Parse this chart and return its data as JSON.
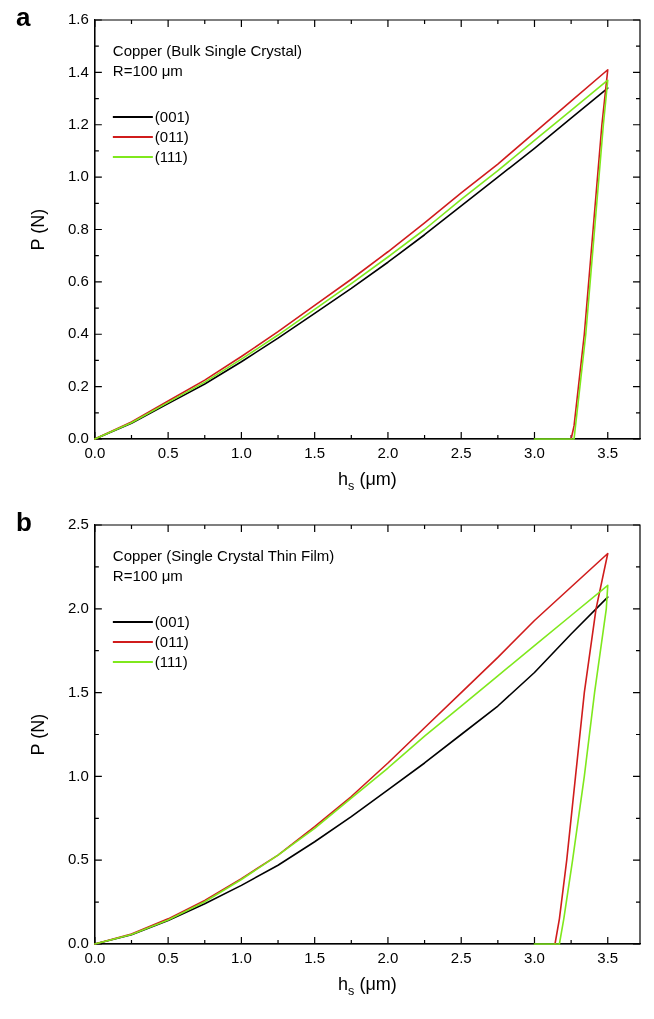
{
  "chart_data": [
    {
      "type": "line",
      "title": "a",
      "xlabel": "h$_{s}$ (μm)",
      "ylabel": "P (N)",
      "legend": "top left",
      "marker": "none",
      "line_style": "solid",
      "grid": false,
      "annotations": [
        "Copper (Bulk Single Crystal)",
        "R=100 μm"
      ],
      "xlim": [
        0,
        3.72
      ],
      "xticks": [
        {
          "value": 0,
          "label": "0.0"
        },
        {
          "value": 0.25,
          "label": null
        },
        {
          "value": 0.5,
          "label": "0.5"
        },
        {
          "value": 0.75,
          "label": null
        },
        {
          "value": 1,
          "label": "1.0"
        },
        {
          "value": 1.25,
          "label": null
        },
        {
          "value": 1.5,
          "label": "1.5"
        },
        {
          "value": 1.75,
          "label": null
        },
        {
          "value": 2,
          "label": "2.0"
        },
        {
          "value": 2.25,
          "label": null
        },
        {
          "value": 2.5,
          "label": "2.5"
        },
        {
          "value": 2.75,
          "label": null
        },
        {
          "value": 3,
          "label": "3.0"
        },
        {
          "value": 3.25,
          "label": null
        },
        {
          "value": 3.5,
          "label": "3.5"
        }
      ],
      "ylim": [
        0,
        1.6
      ],
      "yticks": [
        {
          "value": 0,
          "label": "0.0"
        },
        {
          "value": 0.1,
          "label": null
        },
        {
          "value": 0.2,
          "label": "0.2"
        },
        {
          "value": 0.3,
          "label": null
        },
        {
          "value": 0.4,
          "label": "0.4"
        },
        {
          "value": 0.5,
          "label": null
        },
        {
          "value": 0.6,
          "label": "0.6"
        },
        {
          "value": 0.7,
          "label": null
        },
        {
          "value": 0.8,
          "label": "0.8"
        },
        {
          "value": 0.9,
          "label": null
        },
        {
          "value": 1,
          "label": "1.0"
        },
        {
          "value": 1.1,
          "label": null
        },
        {
          "value": 1.2,
          "label": "1.2"
        },
        {
          "value": 1.3,
          "label": null
        },
        {
          "value": 1.4,
          "label": "1.4"
        },
        {
          "value": 1.5,
          "label": null
        },
        {
          "value": 1.6,
          "label": "1.6"
        }
      ],
      "series": [
        {
          "name": "(001)",
          "color": "#000000",
          "x": [
            0,
            0.25,
            0.5,
            0.75,
            1,
            1.25,
            1.5,
            1.75,
            2,
            2.25,
            2.5,
            2.75,
            3,
            3.25,
            3.5
          ],
          "values": [
            0,
            0.06,
            0.135,
            0.21,
            0.295,
            0.385,
            0.48,
            0.575,
            0.675,
            0.78,
            0.89,
            1,
            1.11,
            1.225,
            1.34
          ]
        },
        {
          "name": "(011)",
          "color": "#d01c1c",
          "x": [
            0,
            0.25,
            0.5,
            0.75,
            1,
            1.25,
            1.5,
            1.75,
            2,
            2.25,
            2.5,
            2.75,
            3,
            3.25,
            3.5,
            3.46,
            3.4,
            3.34,
            3.3,
            3.27,
            3.25
          ],
          "values": [
            0,
            0.065,
            0.145,
            0.225,
            0.315,
            0.41,
            0.51,
            0.61,
            0.715,
            0.825,
            0.94,
            1.05,
            1.17,
            1.29,
            1.41,
            1.2,
            0.8,
            0.4,
            0.2,
            0.05,
            0
          ]
        },
        {
          "name": "(111)",
          "color": "#7fe81c",
          "x": [
            0,
            0.25,
            0.5,
            0.75,
            1,
            1.25,
            1.5,
            1.75,
            2,
            2.25,
            2.5,
            2.75,
            3,
            3.25,
            3.5,
            3.47,
            3.41,
            3.35,
            3.31,
            3.28,
            3.27,
            3
          ],
          "values": [
            0,
            0.062,
            0.14,
            0.217,
            0.305,
            0.397,
            0.495,
            0.593,
            0.695,
            0.8,
            0.915,
            1.025,
            1.14,
            1.255,
            1.37,
            1.2,
            0.8,
            0.4,
            0.2,
            0.05,
            0,
            0
          ]
        }
      ]
    },
    {
      "type": "line",
      "title": "b",
      "xlabel": "h$_{s}$ (μm)",
      "ylabel": "P (N)",
      "legend": "top left",
      "marker": "none",
      "line_style": "solid",
      "grid": false,
      "annotations": [
        "Copper (Single Crystal Thin Film)",
        "R=100 μm"
      ],
      "xlim": [
        0,
        3.72
      ],
      "xticks": [
        {
          "value": 0,
          "label": "0.0"
        },
        {
          "value": 0.25,
          "label": null
        },
        {
          "value": 0.5,
          "label": "0.5"
        },
        {
          "value": 0.75,
          "label": null
        },
        {
          "value": 1,
          "label": "1.0"
        },
        {
          "value": 1.25,
          "label": null
        },
        {
          "value": 1.5,
          "label": "1.5"
        },
        {
          "value": 1.75,
          "label": null
        },
        {
          "value": 2,
          "label": "2.0"
        },
        {
          "value": 2.25,
          "label": null
        },
        {
          "value": 2.5,
          "label": "2.5"
        },
        {
          "value": 2.75,
          "label": null
        },
        {
          "value": 3,
          "label": "3.0"
        },
        {
          "value": 3.25,
          "label": null
        },
        {
          "value": 3.5,
          "label": "3.5"
        }
      ],
      "ylim": [
        0,
        2.5
      ],
      "yticks": [
        {
          "value": 0,
          "label": "0.0"
        },
        {
          "value": 0.25,
          "label": null
        },
        {
          "value": 0.5,
          "label": "0.5"
        },
        {
          "value": 0.75,
          "label": null
        },
        {
          "value": 1,
          "label": "1.0"
        },
        {
          "value": 1.25,
          "label": null
        },
        {
          "value": 1.5,
          "label": "1.5"
        },
        {
          "value": 1.75,
          "label": null
        },
        {
          "value": 2,
          "label": "2.0"
        },
        {
          "value": 2.25,
          "label": null
        },
        {
          "value": 2.5,
          "label": "2.5"
        }
      ],
      "series": [
        {
          "name": "(001)",
          "color": "#000000",
          "x": [
            0,
            0.25,
            0.5,
            0.75,
            1,
            1.25,
            1.5,
            1.75,
            2,
            2.25,
            2.5,
            2.75,
            3,
            3.25,
            3.5
          ],
          "values": [
            0,
            0.055,
            0.14,
            0.24,
            0.35,
            0.47,
            0.61,
            0.76,
            0.92,
            1.08,
            1.25,
            1.42,
            1.62,
            1.85,
            2.07
          ]
        },
        {
          "name": "(011)",
          "color": "#d01c1c",
          "x": [
            0,
            0.25,
            0.5,
            0.75,
            1,
            1.25,
            1.5,
            1.75,
            2,
            2.25,
            2.5,
            2.75,
            3,
            3.25,
            3.5,
            3.42,
            3.34,
            3.28,
            3.22,
            3.17,
            3.14
          ],
          "values": [
            0,
            0.06,
            0.15,
            0.26,
            0.39,
            0.53,
            0.7,
            0.88,
            1.08,
            1.29,
            1.5,
            1.71,
            1.93,
            2.13,
            2.33,
            2,
            1.5,
            1,
            0.5,
            0.15,
            0
          ]
        },
        {
          "name": "(111)",
          "color": "#7fe81c",
          "x": [
            0,
            0.25,
            0.5,
            0.75,
            1,
            1.25,
            1.5,
            1.75,
            2,
            2.25,
            2.5,
            2.75,
            3,
            3.25,
            3.5,
            3.49,
            3.41,
            3.34,
            3.26,
            3.2,
            3.17,
            3
          ],
          "values": [
            0,
            0.057,
            0.143,
            0.252,
            0.385,
            0.53,
            0.69,
            0.87,
            1.05,
            1.24,
            1.42,
            1.6,
            1.78,
            1.96,
            2.14,
            2,
            1.5,
            1,
            0.5,
            0.15,
            0,
            0
          ]
        }
      ]
    }
  ]
}
